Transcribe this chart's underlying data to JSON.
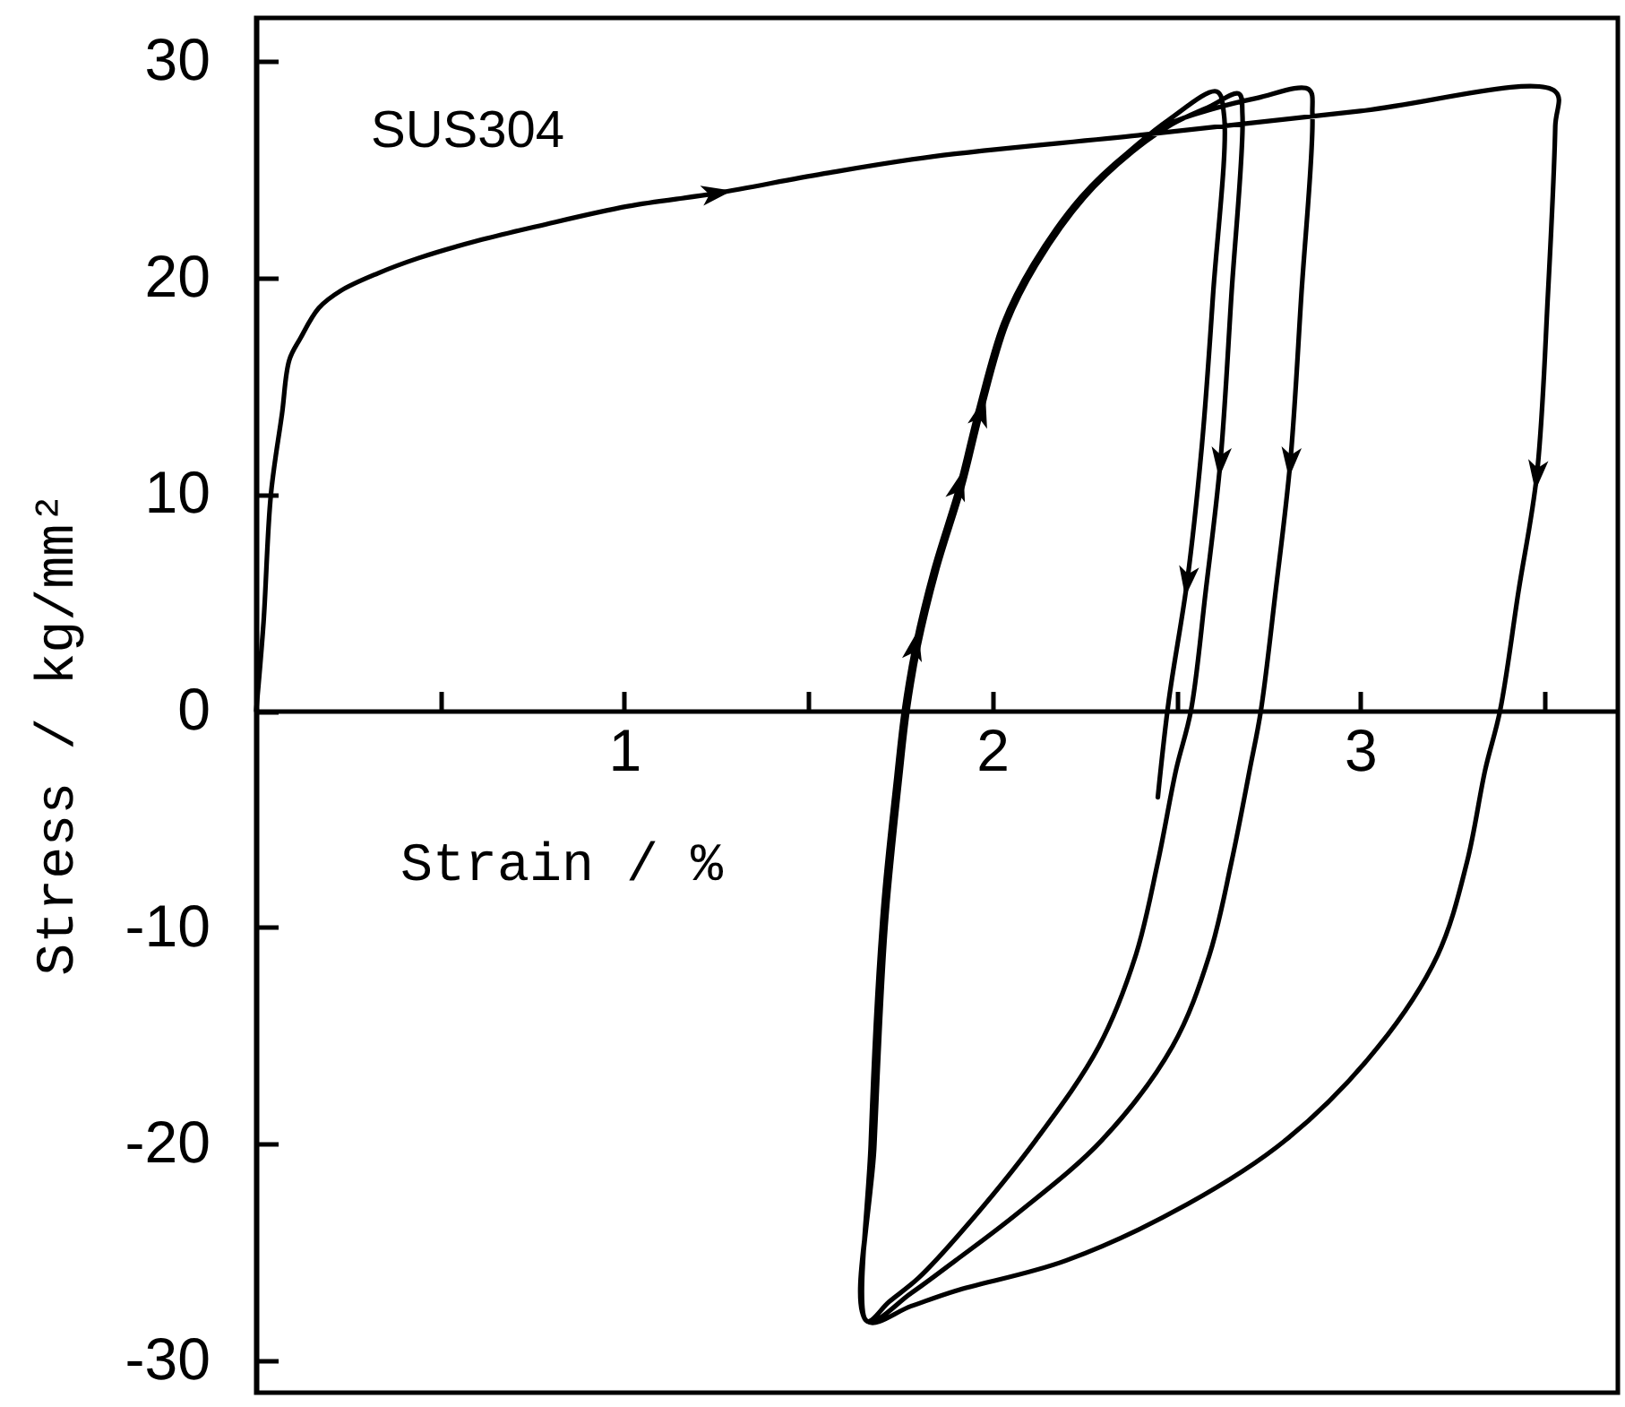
{
  "chart_data": {
    "type": "line",
    "xlabel": "Strain / %",
    "ylabel": "Stress / kg/mm²",
    "annotations": [
      "SUS304"
    ],
    "xlim": [
      0,
      3.7
    ],
    "ylim": [
      -31.5,
      32
    ],
    "xticks": [
      {
        "value": 0.5,
        "label": null
      },
      1,
      {
        "value": 1.5,
        "label": null
      },
      2,
      {
        "value": 2.5,
        "label": null
      },
      3,
      {
        "value": 3.5,
        "label": null
      }
    ],
    "yticks": [
      -30,
      -20,
      -10,
      0,
      10,
      20,
      30
    ],
    "series": [
      {
        "color": "#000000",
        "x": [
          0,
          0.02,
          0.04,
          0.07,
          0.09,
          0.12,
          0.17,
          0.23,
          0.33,
          0.44,
          0.6,
          0.77,
          1.01,
          1.25,
          1.54,
          1.84,
          2.41,
          3.0,
          3.53,
          3.53,
          3.51,
          3.48,
          3.43,
          3.38,
          3.34,
          3.29,
          3.21,
          3.05,
          2.8,
          2.53,
          2.2,
          1.9,
          1.78,
          1.66,
          1.68,
          1.7,
          1.74,
          1.76,
          1.79,
          1.84,
          1.91,
          1.96,
          2.03,
          2.11,
          2.24,
          2.37,
          2.48,
          2.6,
          2.72,
          2.86,
          2.87,
          2.84,
          2.81,
          2.77,
          2.73,
          2.7,
          2.65,
          2.59,
          2.49,
          2.3,
          2.07,
          1.9,
          1.78,
          1.66,
          1.68,
          1.71,
          1.75,
          1.77,
          1.8,
          1.85,
          1.92,
          1.97,
          2.04,
          2.12,
          2.25,
          2.38,
          2.49,
          2.59,
          2.67,
          2.68,
          2.65,
          2.62,
          2.58,
          2.54,
          2.5,
          2.45,
          2.39,
          2.29,
          2.12,
          1.92,
          1.8,
          1.72,
          1.66,
          1.67,
          1.7,
          1.74,
          1.76,
          1.79,
          1.84,
          1.91,
          1.96,
          2.03,
          2.11,
          2.24,
          2.37,
          2.48,
          2.61,
          2.63,
          2.6,
          2.57,
          2.53,
          2.48,
          2.45
        ],
        "values": [
          0,
          4.1,
          10,
          13.7,
          16.2,
          17.2,
          18.6,
          19.4,
          20.2,
          20.9,
          21.7,
          22.4,
          23.3,
          23.9,
          24.8,
          25.6,
          26.6,
          27.7,
          28.6,
          27.0,
          19.2,
          10.9,
          5.5,
          0,
          -2.7,
          -7.0,
          -11.3,
          -15.5,
          -19.8,
          -22.8,
          -25.4,
          -26.8,
          -27.5,
          -28.2,
          -20,
          -10,
          -3,
          0,
          3,
          6.5,
          10.4,
          13.8,
          17.9,
          20.6,
          23.7,
          25.8,
          27.1,
          27.8,
          28.3,
          28.7,
          27.5,
          19.2,
          11.5,
          5.5,
          0,
          -2.7,
          -7.0,
          -11.3,
          -15.5,
          -19.8,
          -23.2,
          -25.4,
          -26.9,
          -28.2,
          -20,
          -10,
          -3,
          0,
          3,
          6.5,
          10.4,
          13.8,
          17.9,
          20.6,
          23.7,
          25.8,
          27.1,
          27.9,
          28.5,
          27.5,
          19.2,
          11.5,
          5.5,
          0,
          -2.7,
          -7.0,
          -11.3,
          -15.5,
          -19.8,
          -24.0,
          -26.2,
          -27.3,
          -28.2,
          -20,
          -10,
          -3,
          0,
          3,
          6.5,
          10.4,
          13.8,
          17.9,
          20.6,
          23.7,
          25.8,
          27.3,
          28.6,
          27.5,
          19.2,
          12.3,
          6.0,
          0.5,
          -4.0
        ]
      }
    ]
  }
}
